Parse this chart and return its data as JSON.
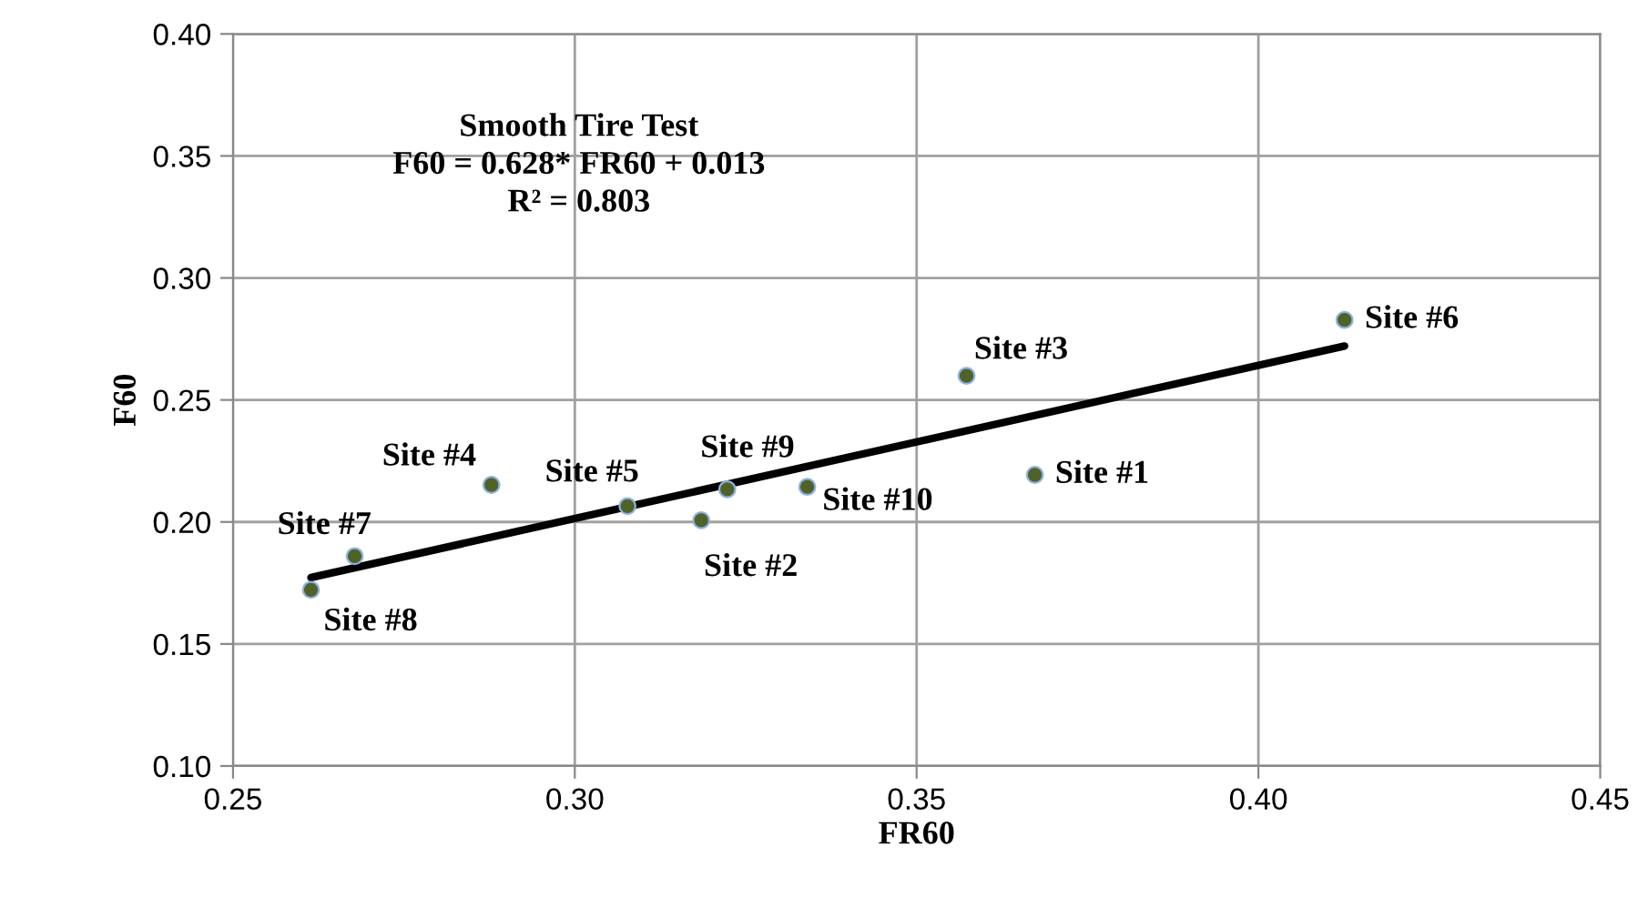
{
  "chart_data": {
    "type": "scatter",
    "xlabel": "FR60",
    "ylabel": "F60",
    "xlim": [
      0.25,
      0.45
    ],
    "xticks": [
      {
        "value": 0.25,
        "label": "0.25"
      },
      {
        "value": 0.3,
        "label": "0.30"
      },
      {
        "value": 0.35,
        "label": "0.35"
      },
      {
        "value": 0.4,
        "label": "0.40"
      },
      {
        "value": 0.45,
        "label": "0.45"
      }
    ],
    "ylim": [
      0.1,
      0.4
    ],
    "yticks": [
      {
        "value": 0.1,
        "label": "0.10"
      },
      {
        "value": 0.15,
        "label": "0.15"
      },
      {
        "value": 0.2,
        "label": "0.20"
      },
      {
        "value": 0.25,
        "label": "0.25"
      },
      {
        "value": 0.3,
        "label": "0.30"
      },
      {
        "value": 0.35,
        "label": "0.35"
      },
      {
        "value": 0.4,
        "label": "0.40"
      }
    ],
    "grid": true,
    "marker": "circle",
    "series": [
      {
        "color": "#4f6228",
        "x": [
          0.3673,
          0.3185,
          0.3573,
          0.2878,
          0.3077,
          0.4126,
          0.2678,
          0.2614,
          0.3223,
          0.334
        ],
        "values": [
          0.2193,
          0.2007,
          0.2599,
          0.2152,
          0.2065,
          0.2828,
          0.186,
          0.1722,
          0.2134,
          0.2144
        ]
      },
      {
        "type": "line",
        "color": "#000000",
        "marker": "none",
        "line_style": "solid",
        "x": [
          0.2614,
          0.4126
        ],
        "values": [
          0.1772,
          0.2721
        ]
      }
    ],
    "annotations": [
      "Smooth Tire Test\nF60 = 0.628* FR60 + 0.013\nR² = 0.803",
      {
        "text": "Site #1",
        "x": 0.3673,
        "y": 0.2193
      },
      {
        "text": "Site #2",
        "x": 0.3185,
        "y": 0.2007
      },
      {
        "text": "Site #3",
        "x": 0.3573,
        "y": 0.2599
      },
      {
        "text": "Site #4",
        "x": 0.2878,
        "y": 0.2152
      },
      {
        "text": "Site #5",
        "x": 0.3077,
        "y": 0.2065
      },
      {
        "text": "Site #6",
        "x": 0.4126,
        "y": 0.2828
      },
      {
        "text": "Site #7",
        "x": 0.2678,
        "y": 0.186
      },
      {
        "text": "Site #8",
        "x": 0.2614,
        "y": 0.1722
      },
      {
        "text": "Site #9",
        "x": 0.3223,
        "y": 0.2134
      },
      {
        "text": "Site #10",
        "x": 0.334,
        "y": 0.2144
      }
    ]
  }
}
